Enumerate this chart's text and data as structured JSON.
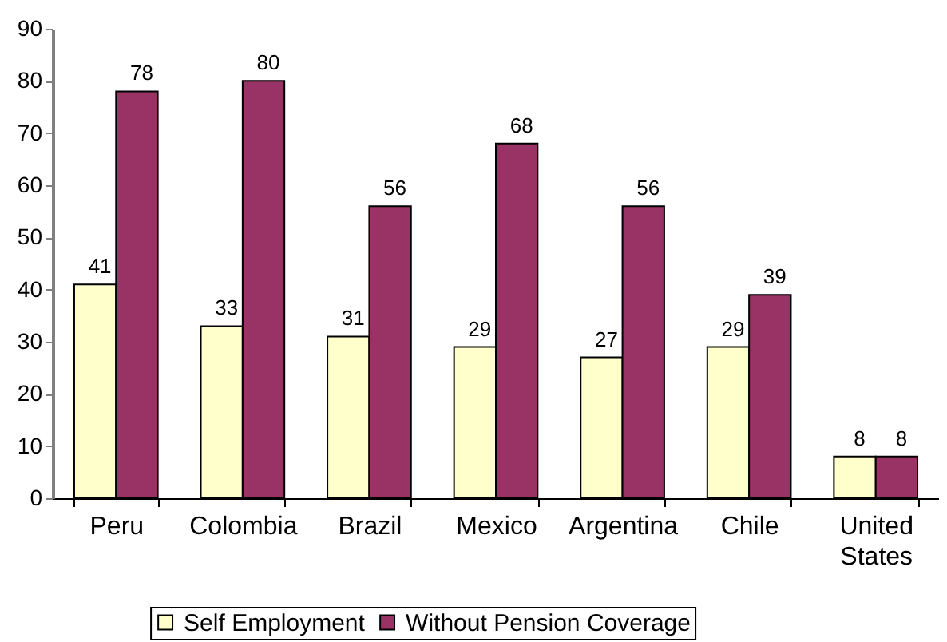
{
  "chart_data": {
    "type": "bar",
    "categories": [
      "Peru",
      "Colombia",
      "Brazil",
      "Mexico",
      "Argentina",
      "Chile",
      "United States"
    ],
    "series": [
      {
        "name": "Self Employment",
        "color": "#ffffcc",
        "values": [
          41,
          33,
          31,
          29,
          27,
          29,
          8
        ]
      },
      {
        "name": "Without Pension Coverage",
        "color": "#993366",
        "values": [
          78,
          80,
          56,
          68,
          56,
          39,
          8
        ]
      }
    ],
    "ylim": [
      0,
      90
    ],
    "yticks": [
      0,
      10,
      20,
      30,
      40,
      50,
      60,
      70,
      80,
      90
    ],
    "data_labels": true,
    "legend": "bottom",
    "grid": false
  }
}
